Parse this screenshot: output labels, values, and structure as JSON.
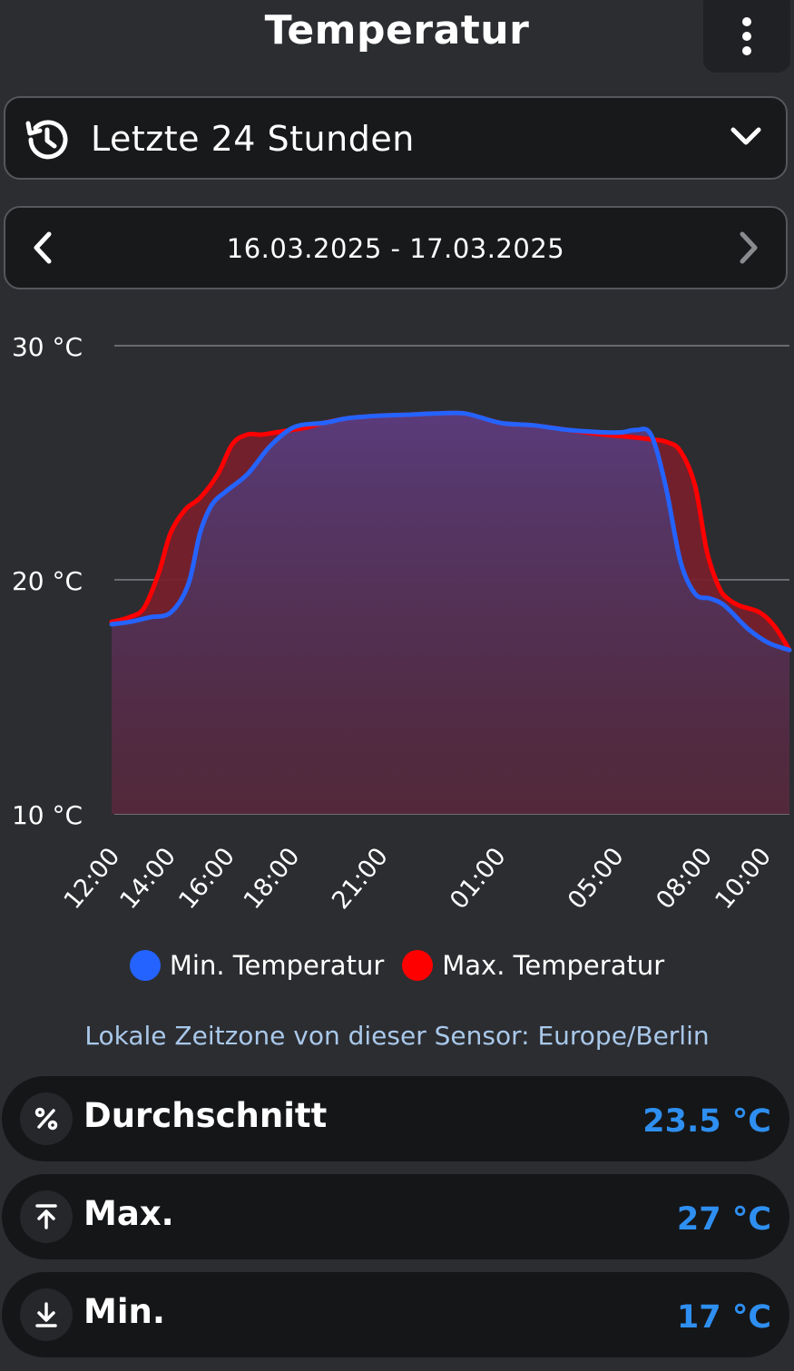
{
  "header": {
    "title": "Temperatur",
    "menu_icon": "more-vertical-icon"
  },
  "range_selector": {
    "icon": "history-icon",
    "label": "Letzte 24 Stunden",
    "chevron_icon": "chevron-down-icon"
  },
  "date_nav": {
    "prev_icon": "chevron-left-icon",
    "label": "16.03.2025 - 17.03.2025",
    "next_icon": "chevron-right-icon"
  },
  "chart_data": {
    "type": "area",
    "ylim": [
      10,
      30
    ],
    "y_ticks": [
      "30 °C",
      "20 °C",
      "10 °C"
    ],
    "y_tick_values": [
      30,
      20,
      10
    ],
    "grid": true,
    "x_ticks": [
      "12:00",
      "14:00",
      "16:00",
      "18:00",
      "21:00",
      "01:00",
      "05:00",
      "08:00",
      "10:00"
    ],
    "x_tick_positions": [
      0,
      1.9,
      3.9,
      6.1,
      9.1,
      13.1,
      17.1,
      20.1,
      22.1
    ],
    "x_range": [
      0,
      23
    ],
    "series": [
      {
        "name": "Min. Temperatur",
        "color": "#2463ff",
        "x": [
          0,
          0.6,
          1.3,
          2.0,
          2.6,
          3.0,
          3.4,
          3.9,
          4.6,
          5.3,
          5.9,
          6.4,
          7.2,
          8.0,
          9.0,
          10.0,
          11.0,
          12.0,
          13.2,
          14.3,
          15.5,
          16.7,
          17.3,
          17.8,
          18.3,
          18.8,
          19.3,
          19.8,
          20.3,
          20.8,
          21.6,
          22.3,
          23.0
        ],
        "values": [
          18.1,
          18.2,
          18.4,
          18.6,
          19.8,
          22.0,
          23.2,
          23.8,
          24.5,
          25.6,
          26.3,
          26.6,
          26.7,
          26.9,
          27.0,
          27.05,
          27.1,
          27.1,
          26.7,
          26.6,
          26.4,
          26.3,
          26.3,
          26.4,
          26.2,
          24.0,
          20.8,
          19.4,
          19.2,
          18.9,
          17.9,
          17.3,
          17.0
        ]
      },
      {
        "name": "Max. Temperatur",
        "color": "#ff0000",
        "x": [
          0,
          0.6,
          1.1,
          1.6,
          2.0,
          2.5,
          3.0,
          3.6,
          4.1,
          4.6,
          5.1,
          5.6,
          6.1,
          6.6,
          7.2,
          8.0,
          9.0,
          10.0,
          11.0,
          12.0,
          13.2,
          14.3,
          15.5,
          16.7,
          17.6,
          18.3,
          18.8,
          19.3,
          19.8,
          20.2,
          20.6,
          20.9,
          21.3,
          22.0,
          22.5,
          23.0
        ],
        "values": [
          18.2,
          18.4,
          18.8,
          20.3,
          22.0,
          23.0,
          23.5,
          24.5,
          25.8,
          26.2,
          26.2,
          26.3,
          26.4,
          26.5,
          26.7,
          26.9,
          27.0,
          27.05,
          27.1,
          27.1,
          26.7,
          26.6,
          26.4,
          26.2,
          26.1,
          26.0,
          25.9,
          25.5,
          24.0,
          21.2,
          19.7,
          19.2,
          18.9,
          18.6,
          18.0,
          17.0
        ]
      }
    ]
  },
  "legend": {
    "min_label": "Min. Temperatur",
    "max_label": "Max. Temperatur",
    "min_color": "#2463ff",
    "max_color": "#ff0000"
  },
  "tz_note": "Lokale Zeitzone von dieser Sensor: Europe/Berlin",
  "stats": [
    {
      "icon": "percent-icon",
      "label": "Durchschnitt",
      "value": "23.5 °C"
    },
    {
      "icon": "arrow-up-to-line-icon",
      "label": "Max.",
      "value": "27 °C"
    },
    {
      "icon": "arrow-down-to-line-icon",
      "label": "Min.",
      "value": "17 °C"
    }
  ]
}
